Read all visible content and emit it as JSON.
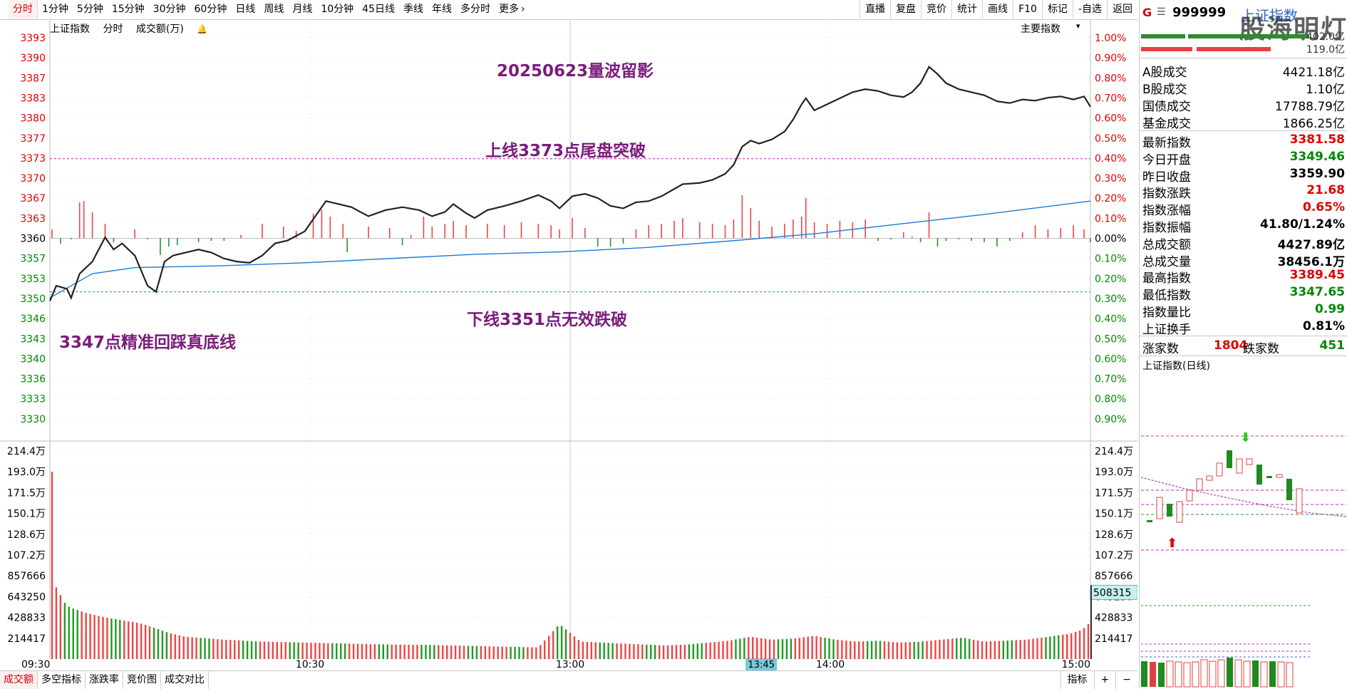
{
  "toolbar": {
    "periods": [
      "分时",
      "1分钟",
      "5分钟",
      "15分钟",
      "30分钟",
      "60分钟",
      "日线",
      "周线",
      "月线",
      "10分钟",
      "45日线",
      "季线",
      "年线",
      "多分时"
    ],
    "more_label": "更多",
    "more_icon": "chevron-right-icon",
    "right_buttons": [
      "直播",
      "复盘",
      "竞价",
      "统计",
      "画线",
      "F10",
      "标记",
      "-自选",
      "返回"
    ]
  },
  "chart_header": {
    "name": "上证指数",
    "mode": "分时",
    "metric": "成交额(万)",
    "bell_icon": "bell-icon",
    "main_indicator_label": "主要指数",
    "main_indicator_icon": "chevron-down-icon"
  },
  "annotations": {
    "title": "20250623量波留影",
    "upper": "上线3373点尾盘突破",
    "lower": "下线3351点无效跌破",
    "bottom": "3347点精准回踩真底线"
  },
  "bottom_bar": {
    "tabs": [
      "成交额",
      "多空指标",
      "涨跌率",
      "竞价图",
      "成交对比"
    ],
    "right_buttons": [
      "指标",
      "+",
      "−"
    ]
  },
  "sidebar": {
    "g_label": "G",
    "menu_icon": "menu-icon",
    "code": "999999",
    "name": "上证指数",
    "watermark": "股海明灯",
    "bar_values": [
      "402.0亿",
      "119.0亿"
    ],
    "rows1": [
      {
        "label": "A股成交",
        "value": "4421.18亿"
      },
      {
        "label": "B股成交",
        "value": "1.10亿"
      },
      {
        "label": "国债成交",
        "value": "17788.79亿"
      },
      {
        "label": "基金成交",
        "value": "1866.25亿"
      }
    ],
    "rows2": [
      {
        "label": "最新指数",
        "value": "3381.58",
        "color": "#e00000"
      },
      {
        "label": "今日开盘",
        "value": "3349.46",
        "color": "#008800"
      },
      {
        "label": "昨日收盘",
        "value": "3359.90",
        "color": "#000000"
      },
      {
        "label": "指数涨跌",
        "value": "21.68",
        "color": "#e00000"
      },
      {
        "label": "指数涨幅",
        "value": "0.65%",
        "color": "#e00000"
      },
      {
        "label": "指数振幅",
        "value": "41.80/1.24%",
        "color": "#000000"
      },
      {
        "label": "总成交额",
        "value": "4427.89亿",
        "color": "#000000"
      },
      {
        "label": "总成交量",
        "value": "38456.1万",
        "color": "#000000"
      },
      {
        "label": "最高指数",
        "value": "3389.45",
        "color": "#e00000"
      },
      {
        "label": "最低指数",
        "value": "3347.65",
        "color": "#008800"
      },
      {
        "label": "指数量比",
        "value": "0.99",
        "color": "#008800"
      },
      {
        "label": "上证换手",
        "value": "0.81%",
        "color": "#000000"
      }
    ],
    "up_label": "涨家数",
    "up_value": "1804",
    "down_label": "跌家数",
    "down_value": "451",
    "daily_title": "上证指数(日线)"
  },
  "chart_data": {
    "type": "line",
    "title": "上证指数",
    "x_ticks": [
      "09:30",
      "10:30",
      "13:00",
      "14:00",
      "15:00"
    ],
    "cursor_time": "13:45",
    "prev_close": 3359.9,
    "price_axis": [
      "3393",
      "3390",
      "3387",
      "3383",
      "3380",
      "3377",
      "3373",
      "3370",
      "3367",
      "3363",
      "3360",
      "3357",
      "3353",
      "3350",
      "3346",
      "3343",
      "3340",
      "3336",
      "3333",
      "3330"
    ],
    "pct_axis": [
      "1.00%",
      "0.90%",
      "0.80%",
      "0.70%",
      "0.60%",
      "0.50%",
      "0.40%",
      "0.30%",
      "0.20%",
      "0.10%",
      "0.00%",
      "0.10%",
      "0.20%",
      "0.30%",
      "0.40%",
      "0.50%",
      "0.60%",
      "0.70%",
      "0.80%",
      "0.90%"
    ],
    "upper_line": 3373,
    "lower_line": 3351,
    "volume_axis": [
      "214.4万",
      "193.0万",
      "171.5万",
      "150.1万",
      "128.6万",
      "107.2万",
      "857666",
      "643250",
      "428833",
      "214417"
    ],
    "volume_cursor_value": "508315",
    "volume_max": 2144000,
    "price_series": [
      [
        0,
        3349.5
      ],
      [
        3,
        3352
      ],
      [
        8,
        3351.5
      ],
      [
        10,
        3350
      ],
      [
        14,
        3354
      ],
      [
        20,
        3356
      ],
      [
        26,
        3360
      ],
      [
        30,
        3358
      ],
      [
        34,
        3359
      ],
      [
        40,
        3357
      ],
      [
        46,
        3352
      ],
      [
        50,
        3351
      ],
      [
        54,
        3356
      ],
      [
        58,
        3357
      ],
      [
        64,
        3357.5
      ],
      [
        70,
        3358
      ],
      [
        76,
        3357.5
      ],
      [
        82,
        3356.5
      ],
      [
        88,
        3356
      ],
      [
        94,
        3355.8
      ],
      [
        100,
        3357
      ],
      [
        106,
        3359
      ],
      [
        112,
        3359.5
      ],
      [
        120,
        3361
      ],
      [
        126,
        3364
      ],
      [
        130,
        3366
      ],
      [
        136,
        3365.5
      ],
      [
        142,
        3365
      ],
      [
        150,
        3363.5
      ],
      [
        158,
        3364.5
      ],
      [
        166,
        3365
      ],
      [
        174,
        3364.5
      ],
      [
        180,
        3363.5
      ],
      [
        186,
        3364.2
      ],
      [
        190,
        3365.5
      ],
      [
        196,
        3364
      ],
      [
        200,
        3363.2
      ],
      [
        206,
        3364.5
      ],
      [
        214,
        3365.2
      ],
      [
        222,
        3366
      ],
      [
        230,
        3367
      ],
      [
        236,
        3366
      ],
      [
        240,
        3364.8
      ],
      [
        246,
        3366.8
      ],
      [
        252,
        3367.2
      ],
      [
        258,
        3366.5
      ],
      [
        264,
        3365.2
      ],
      [
        270,
        3364.8
      ],
      [
        276,
        3365.8
      ],
      [
        282,
        3366
      ],
      [
        288,
        3366.8
      ],
      [
        294,
        3368
      ],
      [
        298,
        3368.8
      ],
      [
        306,
        3369
      ],
      [
        312,
        3369.5
      ],
      [
        318,
        3370.5
      ],
      [
        322,
        3372
      ],
      [
        326,
        3375
      ],
      [
        330,
        3376
      ],
      [
        334,
        3375.5
      ],
      [
        340,
        3376.2
      ],
      [
        346,
        3377.5
      ],
      [
        350,
        3379.5
      ],
      [
        354,
        3382
      ],
      [
        356,
        3383
      ],
      [
        360,
        3381
      ],
      [
        366,
        3382
      ],
      [
        372,
        3383
      ],
      [
        378,
        3384
      ],
      [
        384,
        3384.5
      ],
      [
        390,
        3384.2
      ],
      [
        396,
        3383.5
      ],
      [
        402,
        3383.2
      ],
      [
        406,
        3384
      ],
      [
        410,
        3385.5
      ],
      [
        414,
        3388.2
      ],
      [
        418,
        3387
      ],
      [
        422,
        3385.5
      ],
      [
        428,
        3384.5
      ],
      [
        434,
        3384
      ],
      [
        440,
        3383.5
      ],
      [
        446,
        3382.5
      ],
      [
        452,
        3382.2
      ],
      [
        458,
        3382.8
      ],
      [
        464,
        3382.6
      ],
      [
        470,
        3383.1
      ],
      [
        476,
        3383.3
      ],
      [
        482,
        3382.8
      ],
      [
        487,
        3383.3
      ],
      [
        490,
        3381.6
      ]
    ],
    "avg_series": [
      [
        0,
        3350
      ],
      [
        20,
        3354
      ],
      [
        40,
        3355
      ],
      [
        80,
        3355.3
      ],
      [
        120,
        3355.8
      ],
      [
        160,
        3356.5
      ],
      [
        200,
        3357.2
      ],
      [
        240,
        3357.6
      ],
      [
        280,
        3358.3
      ],
      [
        320,
        3359.4
      ],
      [
        360,
        3360.6
      ],
      [
        400,
        3362.2
      ],
      [
        440,
        3363.8
      ],
      [
        490,
        3366
      ]
    ],
    "volume_bars": [
      [
        1,
        1930000
      ],
      [
        2,
        1030000
      ],
      [
        3,
        740000
      ],
      [
        4,
        700000
      ],
      [
        5,
        660000
      ],
      [
        6,
        610000
      ],
      [
        7,
        580000
      ],
      [
        8,
        550000
      ],
      [
        10,
        530000
      ],
      [
        12,
        510000
      ],
      [
        14,
        500000
      ],
      [
        16,
        480000
      ],
      [
        18,
        470000
      ],
      [
        20,
        460000
      ],
      [
        24,
        440000
      ],
      [
        28,
        420000
      ],
      [
        32,
        410000
      ],
      [
        36,
        390000
      ],
      [
        40,
        380000
      ],
      [
        44,
        360000
      ],
      [
        48,
        330000
      ],
      [
        52,
        300000
      ],
      [
        56,
        270000
      ],
      [
        60,
        250000
      ],
      [
        64,
        230000
      ],
      [
        70,
        220000
      ],
      [
        76,
        210000
      ],
      [
        82,
        200000
      ],
      [
        88,
        195000
      ],
      [
        94,
        185000
      ],
      [
        100,
        180000
      ],
      [
        110,
        175000
      ],
      [
        120,
        170000
      ],
      [
        130,
        165000
      ],
      [
        140,
        160000
      ],
      [
        150,
        155000
      ],
      [
        160,
        150000
      ],
      [
        170,
        148000
      ],
      [
        180,
        145000
      ],
      [
        190,
        140000
      ],
      [
        200,
        135000
      ],
      [
        210,
        130000
      ],
      [
        220,
        125000
      ],
      [
        230,
        120000
      ],
      [
        240,
        360000
      ],
      [
        250,
        180000
      ],
      [
        260,
        170000
      ],
      [
        270,
        160000
      ],
      [
        280,
        150000
      ],
      [
        290,
        140000
      ],
      [
        300,
        150000
      ],
      [
        310,
        170000
      ],
      [
        320,
        190000
      ],
      [
        330,
        230000
      ],
      [
        340,
        200000
      ],
      [
        350,
        210000
      ],
      [
        360,
        240000
      ],
      [
        370,
        200000
      ],
      [
        380,
        180000
      ],
      [
        390,
        190000
      ],
      [
        400,
        170000
      ],
      [
        410,
        180000
      ],
      [
        420,
        200000
      ],
      [
        430,
        220000
      ],
      [
        440,
        180000
      ],
      [
        450,
        190000
      ],
      [
        460,
        200000
      ],
      [
        470,
        230000
      ],
      [
        480,
        260000
      ],
      [
        486,
        300000
      ],
      [
        489,
        360000
      ]
    ],
    "diff_bars": [
      [
        1,
        60000
      ],
      [
        5,
        -40000
      ],
      [
        10,
        -10000
      ],
      [
        14,
        250000
      ],
      [
        16,
        260000
      ],
      [
        20,
        180000
      ],
      [
        26,
        100000
      ],
      [
        30,
        -30000
      ],
      [
        40,
        60000
      ],
      [
        46,
        -10000
      ],
      [
        52,
        -120000
      ],
      [
        56,
        -60000
      ],
      [
        60,
        -50000
      ],
      [
        70,
        -30000
      ],
      [
        76,
        -20000
      ],
      [
        82,
        -20000
      ],
      [
        90,
        20000
      ],
      [
        100,
        100000
      ],
      [
        110,
        80000
      ],
      [
        116,
        50000
      ],
      [
        124,
        170000
      ],
      [
        128,
        200000
      ],
      [
        132,
        150000
      ],
      [
        138,
        100000
      ],
      [
        140,
        -100000
      ],
      [
        150,
        80000
      ],
      [
        160,
        70000
      ],
      [
        166,
        -50000
      ],
      [
        170,
        20000
      ],
      [
        176,
        150000
      ],
      [
        180,
        80000
      ],
      [
        186,
        100000
      ],
      [
        190,
        120000
      ],
      [
        196,
        90000
      ],
      [
        206,
        100000
      ],
      [
        214,
        90000
      ],
      [
        222,
        110000
      ],
      [
        230,
        100000
      ],
      [
        236,
        90000
      ],
      [
        240,
        60000
      ],
      [
        246,
        140000
      ],
      [
        252,
        70000
      ],
      [
        258,
        -60000
      ],
      [
        264,
        -60000
      ],
      [
        270,
        -40000
      ],
      [
        276,
        60000
      ],
      [
        282,
        90000
      ],
      [
        288,
        100000
      ],
      [
        294,
        120000
      ],
      [
        298,
        140000
      ],
      [
        306,
        110000
      ],
      [
        312,
        100000
      ],
      [
        318,
        90000
      ],
      [
        322,
        130000
      ],
      [
        326,
        300000
      ],
      [
        330,
        210000
      ],
      [
        334,
        120000
      ],
      [
        340,
        80000
      ],
      [
        346,
        100000
      ],
      [
        350,
        130000
      ],
      [
        354,
        150000
      ],
      [
        356,
        280000
      ],
      [
        360,
        110000
      ],
      [
        366,
        100000
      ],
      [
        372,
        120000
      ],
      [
        378,
        110000
      ],
      [
        384,
        130000
      ],
      [
        390,
        -20000
      ],
      [
        396,
        -10000
      ],
      [
        402,
        40000
      ],
      [
        406,
        10000
      ],
      [
        410,
        -30000
      ],
      [
        414,
        180000
      ],
      [
        418,
        -60000
      ],
      [
        422,
        -20000
      ],
      [
        428,
        -10000
      ],
      [
        434,
        -20000
      ],
      [
        440,
        -30000
      ],
      [
        446,
        -60000
      ],
      [
        452,
        -20000
      ],
      [
        458,
        40000
      ],
      [
        464,
        90000
      ],
      [
        470,
        60000
      ],
      [
        476,
        70000
      ],
      [
        482,
        90000
      ],
      [
        487,
        60000
      ],
      [
        490,
        -30000
      ]
    ]
  }
}
